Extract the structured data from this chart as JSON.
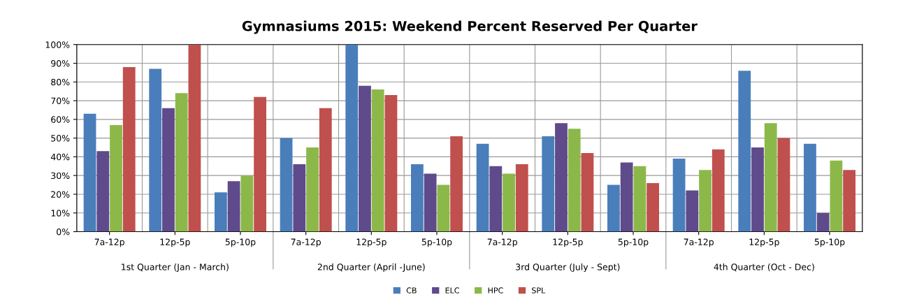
{
  "chart_data": {
    "type": "bar",
    "title": "Gymnasiums 2015: Weekend Percent Reserved Per Quarter",
    "categories": [
      "7a-12p",
      "12p-5p",
      "5p-10p",
      "7a-12p",
      "12p-5p",
      "5p-10p",
      "7a-12p",
      "12p-5p",
      "5p-10p",
      "7a-12p",
      "12p-5p",
      "5p-10p"
    ],
    "series": [
      {
        "name": "CB",
        "color": "#4a7ebb",
        "values": [
          63,
          87,
          21,
          50,
          100,
          36,
          47,
          51,
          25,
          39,
          86,
          47
        ]
      },
      {
        "name": "ELC",
        "color": "#5f4a8b",
        "values": [
          43,
          66,
          27,
          36,
          78,
          31,
          35,
          58,
          37,
          22,
          45,
          10
        ]
      },
      {
        "name": "HPC",
        "color": "#8cb84a",
        "values": [
          57,
          74,
          30,
          45,
          76,
          25,
          31,
          55,
          35,
          33,
          58,
          38
        ]
      },
      {
        "name": "SPL",
        "color": "#c0504d",
        "values": [
          88,
          100,
          72,
          66,
          73,
          51,
          36,
          42,
          26,
          44,
          50,
          33
        ]
      }
    ],
    "ylim": [
      0,
      100
    ],
    "yticks": [
      {
        "value": 0,
        "label": "0%"
      },
      {
        "value": 10,
        "label": "10%"
      },
      {
        "value": 20,
        "label": "20%"
      },
      {
        "value": 30,
        "label": "30%"
      },
      {
        "value": 40,
        "label": "40%"
      },
      {
        "value": 50,
        "label": "50%"
      },
      {
        "value": 60,
        "label": "60%"
      },
      {
        "value": 70,
        "label": "70%"
      },
      {
        "value": 80,
        "label": "80%"
      },
      {
        "value": 90,
        "label": "90%"
      },
      {
        "value": 100,
        "label": "100%"
      }
    ],
    "annotations": [
      "1st Quarter (Jan - March)",
      "2nd Quarter (April -June)",
      "3rd Quarter (July - Sept)",
      "4th Quarter (Oct - Dec)"
    ],
    "grid": true,
    "legend": "bottom"
  }
}
